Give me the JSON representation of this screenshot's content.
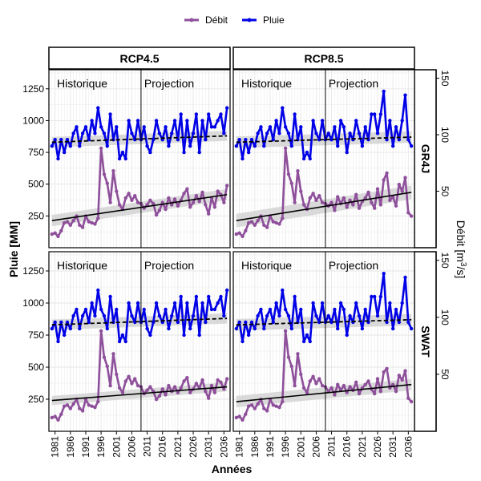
{
  "colors": {
    "Débit": "#8E4F9B",
    "Pluie": "#0000E6",
    "grid": "#E6E6E6",
    "ribbon": "#D3D3D3",
    "trend": "#000000"
  },
  "chart_data": {
    "type": "line",
    "legend": {
      "position": "top",
      "items": [
        "Débit",
        "Pluie"
      ]
    },
    "columns": [
      "RCP4.5",
      "RCP8.5"
    ],
    "rows": [
      "GR4J",
      "SWAT"
    ],
    "period_labels": [
      "Historique",
      "Projection"
    ],
    "period_boundary_year": 2009,
    "xlabel": "Années",
    "ylabel_left": "Pluie [MM]",
    "ylabel_right": "Débit [m³/s]",
    "ylabel_right_parts": [
      "Débit [m",
      "3",
      "/s]"
    ],
    "xlim": [
      1979,
      2038
    ],
    "ylim_left": [
      0,
      1400
    ],
    "ylim_right": [
      0,
      157.5
    ],
    "x_ticks": [
      1981,
      1986,
      1991,
      1996,
      2001,
      2006,
      2011,
      2016,
      2021,
      2026,
      2031,
      2036
    ],
    "y_ticks_left": [
      250,
      500,
      750,
      1000,
      1250
    ],
    "y_ticks_right": [
      50,
      100,
      150
    ],
    "grid": true,
    "years": [
      1980,
      1981,
      1982,
      1983,
      1984,
      1985,
      1986,
      1987,
      1988,
      1989,
      1990,
      1991,
      1992,
      1993,
      1994,
      1995,
      1996,
      1997,
      1998,
      1999,
      2000,
      2001,
      2002,
      2003,
      2004,
      2005,
      2006,
      2007,
      2008,
      2009,
      2010,
      2011,
      2012,
      2013,
      2014,
      2015,
      2016,
      2017,
      2018,
      2019,
      2020,
      2021,
      2022,
      2023,
      2024,
      2025,
      2026,
      2027,
      2028,
      2029,
      2030,
      2031,
      2032,
      2033,
      2034,
      2035,
      2036,
      2037
    ],
    "pluie_historique": [
      800,
      850,
      700,
      850,
      750,
      850,
      800,
      900,
      950,
      800,
      900,
      950,
      850,
      1000,
      900,
      1100,
      950,
      900,
      800,
      1050,
      850,
      950,
      700,
      750,
      700,
      1000,
      900,
      850,
      1000,
      850
    ],
    "debit_historique": [
      12,
      13,
      10,
      15,
      22,
      23,
      20,
      24,
      28,
      20,
      18,
      28,
      23,
      22,
      21,
      26,
      88,
      65,
      57,
      40,
      68,
      50,
      38,
      34,
      44,
      48,
      42,
      46,
      40,
      39
    ],
    "panels": [
      {
        "column": "RCP4.5",
        "row": "GR4J",
        "pluie_projection": [
          950,
          800,
          750,
          850,
          1000,
          900,
          850,
          950,
          800,
          900,
          1000,
          850,
          1050,
          750,
          1000,
          800,
          900,
          1050,
          750,
          1000,
          850,
          1050,
          950,
          950,
          1000,
          1050,
          900,
          1100
        ],
        "debit_projection": [
          35,
          38,
          42,
          39,
          29,
          33,
          40,
          34,
          44,
          38,
          43,
          37,
          42,
          48,
          52,
          36,
          40,
          46,
          41,
          49,
          38,
          30,
          44,
          36,
          50,
          47,
          40,
          55
        ],
        "pluie_trend": [
          830,
          880
        ],
        "pluie_band": [
          40,
          40
        ],
        "debit_trend": [
          24,
          47
        ],
        "debit_band": [
          5,
          5
        ]
      },
      {
        "column": "RCP8.5",
        "row": "GR4J",
        "pluie_projection": [
          900,
          850,
          950,
          800,
          1000,
          950,
          750,
          900,
          850,
          1000,
          900,
          800,
          950,
          850,
          1050,
          1050,
          900,
          1050,
          1230,
          850,
          1000,
          800,
          950,
          850,
          1000,
          1200,
          850,
          800
        ],
        "debit_projection": [
          37,
          40,
          33,
          45,
          39,
          44,
          36,
          42,
          38,
          47,
          35,
          41,
          44,
          49,
          40,
          35,
          52,
          38,
          60,
          66,
          42,
          45,
          37,
          56,
          50,
          62,
          31,
          28
        ],
        "pluie_trend": [
          830,
          870
        ],
        "pluie_band": [
          45,
          45
        ],
        "debit_trend": [
          24,
          49
        ],
        "debit_band": [
          6,
          6
        ]
      },
      {
        "column": "RCP4.5",
        "row": "SWAT",
        "pluie_projection": [
          950,
          800,
          750,
          850,
          1000,
          900,
          850,
          950,
          800,
          900,
          1000,
          850,
          1050,
          750,
          1000,
          800,
          900,
          1050,
          750,
          1000,
          850,
          1050,
          950,
          950,
          1000,
          1050,
          900,
          1100
        ],
        "debit_projection": [
          33,
          36,
          39,
          35,
          28,
          31,
          37,
          32,
          40,
          35,
          39,
          34,
          38,
          44,
          47,
          34,
          37,
          42,
          38,
          45,
          35,
          29,
          40,
          34,
          45,
          43,
          37,
          46
        ],
        "pluie_trend": [
          830,
          880
        ],
        "pluie_band": [
          40,
          40
        ],
        "debit_trend": [
          27,
          39
        ],
        "debit_band": [
          4,
          4
        ]
      },
      {
        "column": "RCP8.5",
        "row": "SWAT",
        "pluie_projection": [
          900,
          850,
          950,
          800,
          1000,
          950,
          750,
          900,
          850,
          1000,
          900,
          800,
          950,
          850,
          1050,
          1050,
          900,
          1050,
          1230,
          850,
          1000,
          800,
          950,
          850,
          1000,
          1200,
          850,
          800
        ],
        "debit_projection": [
          35,
          38,
          32,
          41,
          36,
          40,
          34,
          39,
          36,
          43,
          33,
          38,
          41,
          44,
          37,
          33,
          46,
          35,
          52,
          55,
          38,
          41,
          35,
          49,
          45,
          53,
          29,
          26
        ],
        "pluie_trend": [
          830,
          870
        ],
        "pluie_band": [
          45,
          45
        ],
        "debit_trend": [
          26,
          41
        ],
        "debit_band": [
          5,
          5
        ]
      }
    ]
  }
}
